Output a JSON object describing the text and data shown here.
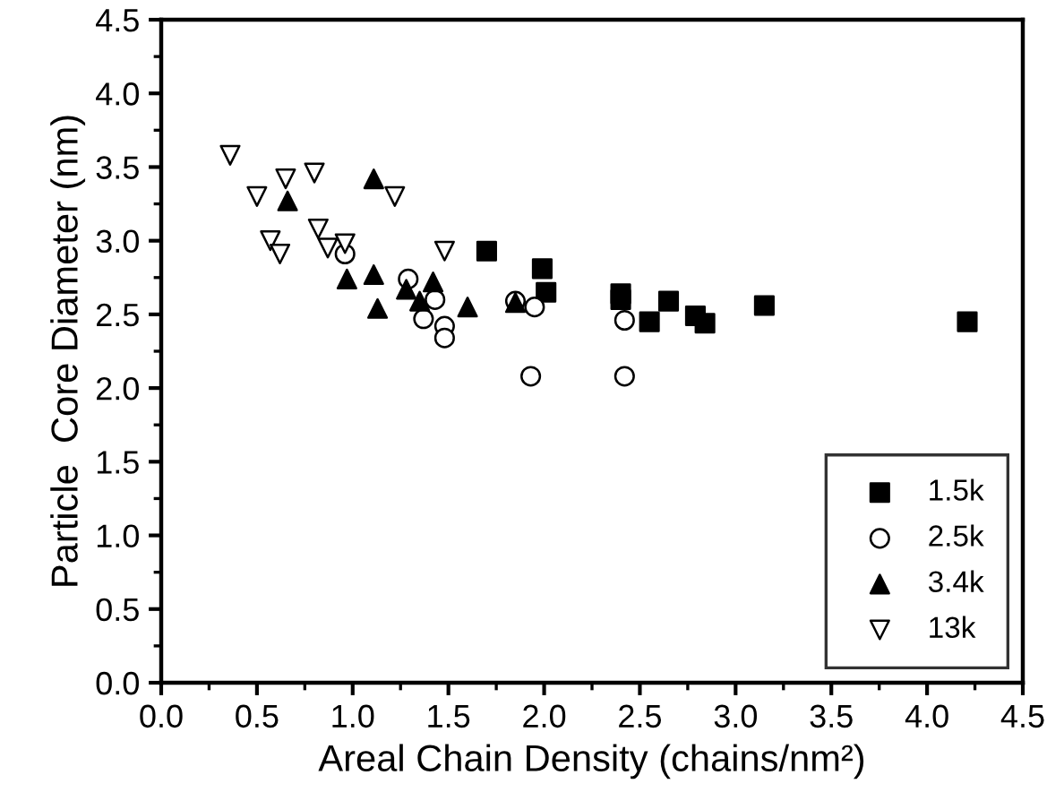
{
  "chart_data": {
    "type": "scatter",
    "xlabel": "Areal Chain Density (chains/nm²)",
    "ylabel": "Particle  Core Diameter (nm)",
    "xlim": [
      0.0,
      4.5
    ],
    "ylim": [
      0.0,
      4.5
    ],
    "xticks": [
      {
        "value": 0,
        "label": "0.0"
      },
      0.5,
      {
        "value": 1,
        "label": "1.0"
      },
      1.5,
      {
        "value": 2,
        "label": "2.0"
      },
      2.5,
      {
        "value": 3,
        "label": "3.0"
      },
      3.5,
      {
        "value": 4,
        "label": "4.0"
      },
      4.5
    ],
    "yticks": [
      {
        "value": 0,
        "label": "0.0"
      },
      0.5,
      {
        "value": 1,
        "label": "1.0"
      },
      1.5,
      {
        "value": 2,
        "label": "2.0"
      },
      2.5,
      {
        "value": 3,
        "label": "3.0"
      },
      3.5,
      {
        "value": 4,
        "label": "4.0"
      },
      4.5
    ],
    "grid": false,
    "legend": "bottom right",
    "series": [
      {
        "name": "1.5k",
        "color": "#000000",
        "marker": "square",
        "x": [
          1.7,
          1.99,
          2.01,
          2.4,
          2.4,
          2.55,
          2.65,
          2.79,
          2.84,
          3.15,
          4.21
        ],
        "values": [
          2.93,
          2.81,
          2.65,
          2.64,
          2.6,
          2.45,
          2.59,
          2.49,
          2.44,
          2.56,
          2.45
        ]
      },
      {
        "name": "2.5k",
        "color": "#000000",
        "marker": "circle",
        "x": [
          0.96,
          1.29,
          1.43,
          1.37,
          1.48,
          1.48,
          1.85,
          1.95,
          1.93,
          2.42,
          2.42
        ],
        "values": [
          2.91,
          2.74,
          2.6,
          2.47,
          2.42,
          2.34,
          2.59,
          2.55,
          2.08,
          2.46,
          2.08
        ]
      },
      {
        "name": "3.4k",
        "color": "#000000",
        "marker": "triangle",
        "x": [
          0.66,
          1.11,
          0.97,
          1.11,
          1.13,
          1.28,
          1.35,
          1.42,
          1.6,
          1.85
        ],
        "values": [
          3.27,
          3.42,
          2.74,
          2.77,
          2.54,
          2.67,
          2.59,
          2.72,
          2.55,
          2.58
        ]
      },
      {
        "name": "13k",
        "color": "#000000",
        "marker": "triangle_down",
        "x": [
          0.36,
          0.5,
          0.65,
          0.8,
          0.57,
          0.62,
          1.22,
          0.82,
          0.87,
          0.96,
          1.48
        ],
        "values": [
          3.58,
          3.3,
          3.42,
          3.46,
          3.0,
          2.91,
          3.3,
          3.08,
          2.95,
          2.98,
          2.93
        ]
      }
    ]
  }
}
